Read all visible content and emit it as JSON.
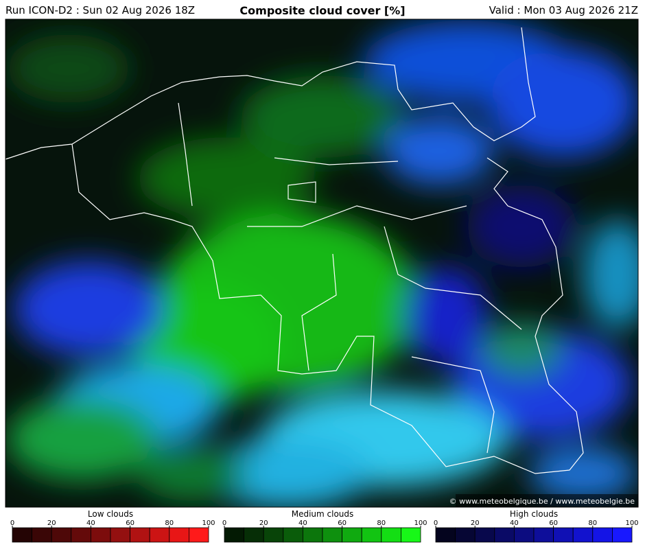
{
  "header": {
    "run": "Run ICON-D2 : Sun 02 Aug 2026 18Z",
    "title": "Composite cloud cover [%]",
    "valid": "Valid : Mon 03 Aug 2026 21Z"
  },
  "credit": "© www.meteobelgique.be / www.meteobelgie.be",
  "legends": [
    {
      "title": "Low clouds",
      "ticks": [
        0,
        20,
        40,
        60,
        80,
        100
      ],
      "colors": [
        "#240404",
        "#3a0606",
        "#4e0808",
        "#640a0a",
        "#7c0c0c",
        "#941010",
        "#b01212",
        "#cc1414",
        "#e81616",
        "#ff1a1a"
      ]
    },
    {
      "title": "Medium clouds",
      "ticks": [
        0,
        20,
        40,
        60,
        80,
        100
      ],
      "colors": [
        "#031a03",
        "#062e06",
        "#084408",
        "#0a5c0a",
        "#0c760c",
        "#0e900e",
        "#10aa10",
        "#12c412",
        "#14de14",
        "#18f818"
      ]
    },
    {
      "title": "High clouds",
      "ticks": [
        0,
        20,
        40,
        60,
        80,
        100
      ],
      "colors": [
        "#04041e",
        "#060634",
        "#08084c",
        "#0a0a66",
        "#0c0c80",
        "#0e0e9a",
        "#1010b4",
        "#1212ce",
        "#1414e6",
        "#1818ff"
      ]
    }
  ]
}
